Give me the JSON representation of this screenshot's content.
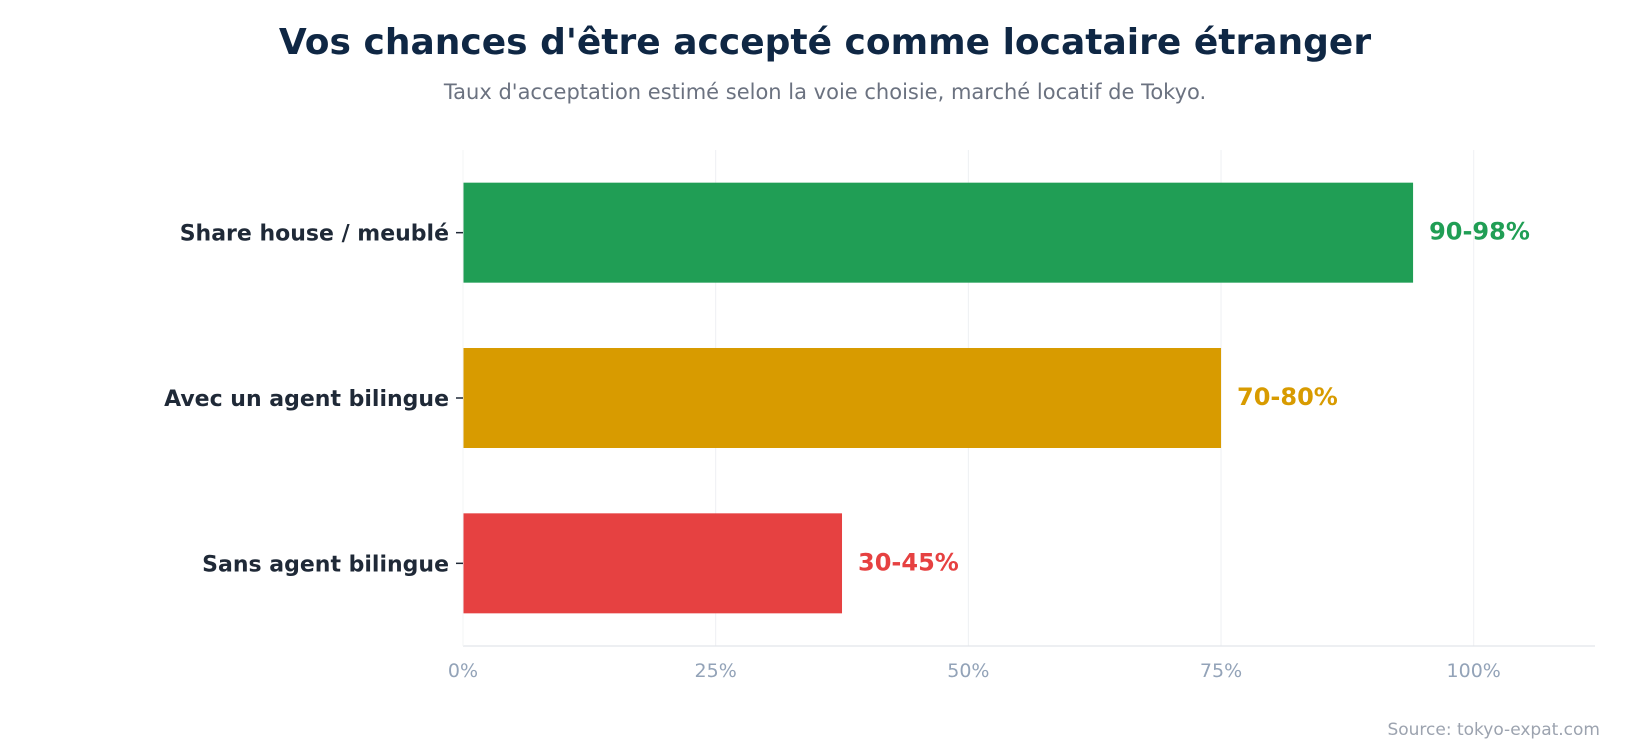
{
  "chart_data": {
    "type": "bar",
    "orientation": "horizontal",
    "title": "Vos chances d'être accepté comme locataire étranger",
    "subtitle": "Taux d'acceptation estimé selon la voie choisie, marché locatif de Tokyo.",
    "source": "Source: tokyo-expat.com",
    "categories": [
      "Share house / meublé",
      "Avec un agent bilingue",
      "Sans agent bilingue"
    ],
    "values": [
      94,
      75,
      37.5
    ],
    "value_labels": [
      "90-98%",
      "70-80%",
      "30-45%"
    ],
    "colors": [
      "#209e55",
      "#d89b00",
      "#e64141"
    ],
    "xlim": [
      0,
      112
    ],
    "xticks": [
      0,
      25,
      50,
      75,
      100
    ],
    "xtick_labels": [
      "0%",
      "25%",
      "50%",
      "75%",
      "100%"
    ],
    "grid": "vertical",
    "legend": "none"
  }
}
